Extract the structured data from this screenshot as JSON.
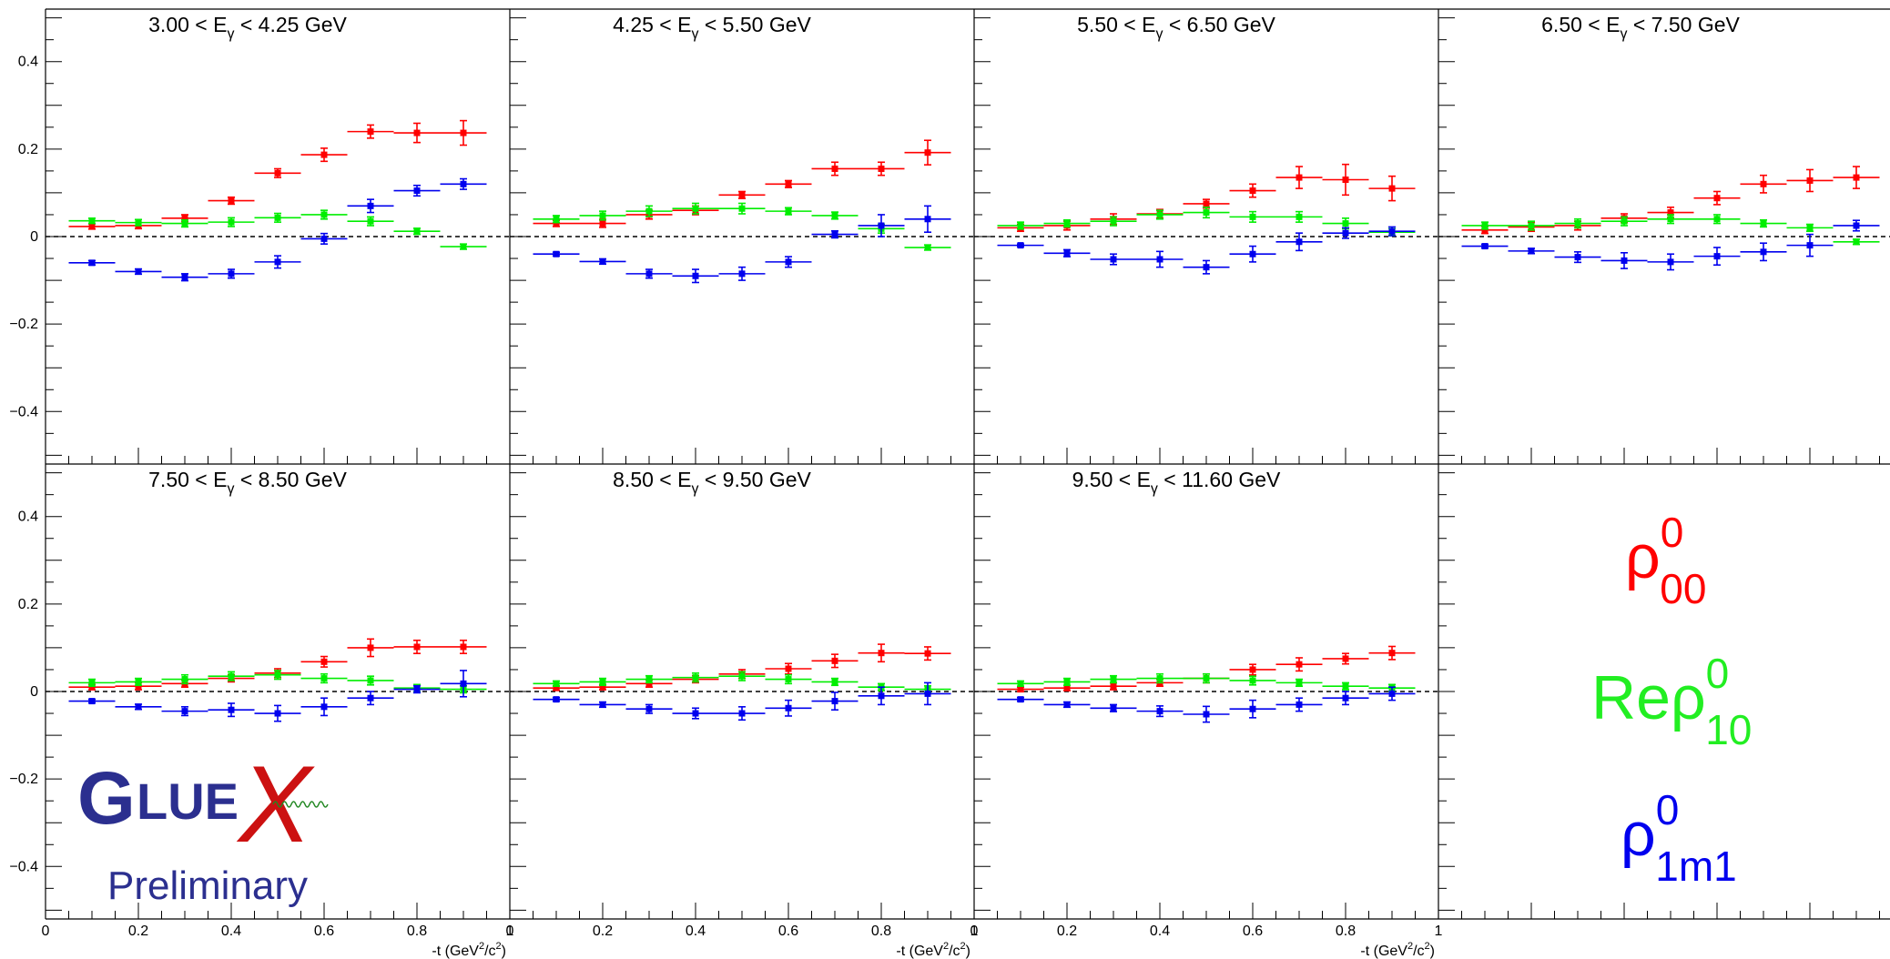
{
  "chart_data": [
    {
      "type": "scatter",
      "title": "3.00 < E_γ < 4.25 GeV",
      "title_parts": {
        "pre": "3.00 < E",
        "sub": "γ",
        "post": " < 4.25 GeV"
      },
      "xlim": [
        0,
        1
      ],
      "ylim": [
        -0.52,
        0.52
      ],
      "x": [
        0.1,
        0.2,
        0.3,
        0.4,
        0.5,
        0.6,
        0.7,
        0.8,
        0.9
      ],
      "series": [
        {
          "name": "ρ00",
          "color": "#ff0000",
          "values": [
            0.023,
            0.025,
            0.042,
            0.082,
            0.145,
            0.187,
            0.24,
            0.237,
            0.237
          ],
          "errors": [
            0.006,
            0.007,
            0.008,
            0.008,
            0.01,
            0.015,
            0.015,
            0.022,
            0.028
          ]
        },
        {
          "name": "Reρ10",
          "color": "#00ee00",
          "values": [
            0.036,
            0.032,
            0.03,
            0.033,
            0.043,
            0.05,
            0.035,
            0.012,
            -0.023
          ],
          "errors": [
            0.006,
            0.007,
            0.008,
            0.01,
            0.01,
            0.01,
            0.01,
            0.007,
            0.006
          ]
        },
        {
          "name": "ρ1m1",
          "color": "#0000ee",
          "values": [
            -0.06,
            -0.08,
            -0.093,
            -0.085,
            -0.058,
            -0.005,
            0.07,
            0.105,
            0.12
          ],
          "errors": [
            0.005,
            0.006,
            0.008,
            0.01,
            0.014,
            0.012,
            0.015,
            0.012,
            0.012
          ]
        }
      ]
    },
    {
      "type": "scatter",
      "title": "4.25 < E_γ < 5.50 GeV",
      "title_parts": {
        "pre": "4.25 < E",
        "sub": "γ",
        "post": " < 5.50 GeV"
      },
      "xlim": [
        0,
        1
      ],
      "ylim": [
        -0.52,
        0.52
      ],
      "x": [
        0.1,
        0.2,
        0.3,
        0.4,
        0.5,
        0.6,
        0.7,
        0.8,
        0.9
      ],
      "series": [
        {
          "name": "ρ00",
          "color": "#ff0000",
          "values": [
            0.03,
            0.03,
            0.05,
            0.06,
            0.095,
            0.12,
            0.155,
            0.155,
            0.192
          ],
          "errors": [
            0.007,
            0.009,
            0.01,
            0.01,
            0.008,
            0.008,
            0.015,
            0.015,
            0.028
          ]
        },
        {
          "name": "Reρ10",
          "color": "#00ee00",
          "values": [
            0.04,
            0.048,
            0.058,
            0.064,
            0.064,
            0.058,
            0.048,
            0.018,
            -0.025
          ],
          "errors": [
            0.008,
            0.01,
            0.012,
            0.012,
            0.012,
            0.008,
            0.008,
            0.01,
            0.006
          ]
        },
        {
          "name": "ρ1m1",
          "color": "#0000ee",
          "values": [
            -0.04,
            -0.057,
            -0.085,
            -0.09,
            -0.085,
            -0.058,
            0.005,
            0.025,
            0.04
          ],
          "errors": [
            0.004,
            0.006,
            0.01,
            0.015,
            0.015,
            0.012,
            0.008,
            0.025,
            0.03
          ]
        }
      ]
    },
    {
      "type": "scatter",
      "title": "5.50 < E_γ < 6.50 GeV",
      "title_parts": {
        "pre": "5.50 < E",
        "sub": "γ",
        "post": " < 6.50 GeV"
      },
      "xlim": [
        0,
        1
      ],
      "ylim": [
        -0.52,
        0.52
      ],
      "x": [
        0.1,
        0.2,
        0.3,
        0.4,
        0.5,
        0.6,
        0.7,
        0.8,
        0.9
      ],
      "series": [
        {
          "name": "ρ00",
          "color": "#ff0000",
          "values": [
            0.02,
            0.025,
            0.04,
            0.052,
            0.075,
            0.105,
            0.135,
            0.13,
            0.11
          ],
          "errors": [
            0.008,
            0.01,
            0.012,
            0.01,
            0.01,
            0.015,
            0.025,
            0.035,
            0.028
          ]
        },
        {
          "name": "Reρ10",
          "color": "#00ee00",
          "values": [
            0.025,
            0.03,
            0.035,
            0.05,
            0.055,
            0.045,
            0.045,
            0.03,
            0.01
          ],
          "errors": [
            0.008,
            0.008,
            0.01,
            0.01,
            0.012,
            0.012,
            0.012,
            0.012,
            0.008
          ]
        },
        {
          "name": "ρ1m1",
          "color": "#0000ee",
          "values": [
            -0.02,
            -0.038,
            -0.052,
            -0.052,
            -0.07,
            -0.04,
            -0.012,
            0.008,
            0.012
          ],
          "errors": [
            0.003,
            0.008,
            0.012,
            0.018,
            0.015,
            0.018,
            0.02,
            0.012,
            0.01
          ]
        }
      ]
    },
    {
      "type": "scatter",
      "title": "6.50 < E_γ < 7.50 GeV",
      "title_parts": {
        "pre": "6.50 < E",
        "sub": "γ",
        "post": " < 7.50 GeV"
      },
      "xlim": [
        0,
        1
      ],
      "ylim": [
        -0.52,
        0.52
      ],
      "x": [
        0.1,
        0.2,
        0.3,
        0.4,
        0.5,
        0.6,
        0.7,
        0.8,
        0.9
      ],
      "series": [
        {
          "name": "ρ00",
          "color": "#ff0000",
          "values": [
            0.015,
            0.022,
            0.025,
            0.042,
            0.055,
            0.088,
            0.12,
            0.128,
            0.135
          ],
          "errors": [
            0.008,
            0.01,
            0.01,
            0.01,
            0.012,
            0.015,
            0.02,
            0.025,
            0.025
          ]
        },
        {
          "name": "Reρ10",
          "color": "#00ee00",
          "values": [
            0.025,
            0.025,
            0.03,
            0.035,
            0.04,
            0.04,
            0.03,
            0.02,
            -0.012
          ],
          "errors": [
            0.008,
            0.01,
            0.01,
            0.01,
            0.01,
            0.01,
            0.008,
            0.008,
            0.006
          ]
        },
        {
          "name": "ρ1m1",
          "color": "#0000ee",
          "values": [
            -0.022,
            -0.033,
            -0.047,
            -0.055,
            -0.058,
            -0.045,
            -0.035,
            -0.02,
            0.025
          ],
          "errors": [
            0.004,
            0.006,
            0.012,
            0.018,
            0.018,
            0.02,
            0.02,
            0.025,
            0.012
          ]
        }
      ]
    },
    {
      "type": "scatter",
      "title": "7.50 < E_γ < 8.50 GeV",
      "title_parts": {
        "pre": "7.50 < E",
        "sub": "γ",
        "post": " < 8.50 GeV"
      },
      "xlim": [
        0,
        1
      ],
      "ylim": [
        -0.52,
        0.52
      ],
      "x": [
        0.1,
        0.2,
        0.3,
        0.4,
        0.5,
        0.6,
        0.7,
        0.8,
        0.9
      ],
      "series": [
        {
          "name": "ρ00",
          "color": "#ff0000",
          "values": [
            0.01,
            0.012,
            0.018,
            0.03,
            0.042,
            0.068,
            0.1,
            0.102,
            0.102
          ],
          "errors": [
            0.006,
            0.008,
            0.008,
            0.008,
            0.01,
            0.012,
            0.02,
            0.015,
            0.015
          ]
        },
        {
          "name": "Reρ10",
          "color": "#00ee00",
          "values": [
            0.02,
            0.022,
            0.028,
            0.035,
            0.038,
            0.03,
            0.025,
            0.008,
            0.005
          ],
          "errors": [
            0.008,
            0.008,
            0.01,
            0.01,
            0.01,
            0.01,
            0.01,
            0.008,
            0.008
          ]
        },
        {
          "name": "ρ1m1",
          "color": "#0000ee",
          "values": [
            -0.022,
            -0.035,
            -0.045,
            -0.042,
            -0.05,
            -0.035,
            -0.015,
            0.005,
            0.018
          ],
          "errors": [
            0.004,
            0.006,
            0.01,
            0.015,
            0.018,
            0.02,
            0.015,
            0.008,
            0.03
          ]
        }
      ]
    },
    {
      "type": "scatter",
      "title": "8.50 < E_γ < 9.50 GeV",
      "title_parts": {
        "pre": "8.50 < E",
        "sub": "γ",
        "post": " < 9.50 GeV"
      },
      "xlim": [
        0,
        1
      ],
      "ylim": [
        -0.52,
        0.52
      ],
      "x": [
        0.1,
        0.2,
        0.3,
        0.4,
        0.5,
        0.6,
        0.7,
        0.8,
        0.9
      ],
      "series": [
        {
          "name": "ρ00",
          "color": "#ff0000",
          "values": [
            0.008,
            0.01,
            0.018,
            0.028,
            0.04,
            0.052,
            0.07,
            0.088,
            0.087
          ],
          "errors": [
            0.005,
            0.006,
            0.008,
            0.008,
            0.01,
            0.012,
            0.015,
            0.02,
            0.015
          ]
        },
        {
          "name": "Reρ10",
          "color": "#00ee00",
          "values": [
            0.018,
            0.022,
            0.028,
            0.032,
            0.035,
            0.028,
            0.022,
            0.01,
            0.005
          ],
          "errors": [
            0.006,
            0.008,
            0.008,
            0.01,
            0.01,
            0.01,
            0.008,
            0.008,
            0.008
          ]
        },
        {
          "name": "ρ1m1",
          "color": "#0000ee",
          "values": [
            -0.018,
            -0.03,
            -0.04,
            -0.05,
            -0.05,
            -0.038,
            -0.022,
            -0.01,
            -0.005
          ],
          "errors": [
            0.004,
            0.006,
            0.01,
            0.012,
            0.015,
            0.018,
            0.02,
            0.02,
            0.025
          ]
        }
      ]
    },
    {
      "type": "scatter",
      "title": "9.50 < E_γ < 11.60 GeV",
      "title_parts": {
        "pre": "9.50 < E",
        "sub": "γ",
        "post": " < 11.60 GeV"
      },
      "xlim": [
        0,
        1
      ],
      "ylim": [
        -0.52,
        0.52
      ],
      "x": [
        0.1,
        0.2,
        0.3,
        0.4,
        0.5,
        0.6,
        0.7,
        0.8,
        0.9
      ],
      "series": [
        {
          "name": "ρ00",
          "color": "#ff0000",
          "values": [
            0.005,
            0.008,
            0.012,
            0.02,
            0.03,
            0.05,
            0.062,
            0.075,
            0.088
          ],
          "errors": [
            0.005,
            0.006,
            0.008,
            0.008,
            0.01,
            0.012,
            0.015,
            0.012,
            0.015
          ]
        },
        {
          "name": "Reρ10",
          "color": "#00ee00",
          "values": [
            0.018,
            0.022,
            0.028,
            0.03,
            0.03,
            0.025,
            0.02,
            0.012,
            0.008
          ],
          "errors": [
            0.006,
            0.008,
            0.008,
            0.01,
            0.01,
            0.01,
            0.008,
            0.008,
            0.008
          ]
        },
        {
          "name": "ρ1m1",
          "color": "#0000ee",
          "values": [
            -0.018,
            -0.03,
            -0.038,
            -0.045,
            -0.052,
            -0.04,
            -0.03,
            -0.015,
            -0.005
          ],
          "errors": [
            0.004,
            0.006,
            0.008,
            0.012,
            0.018,
            0.02,
            0.015,
            0.015,
            0.015
          ]
        }
      ]
    }
  ],
  "axes": {
    "xlabel": "-t (GeV²/c²)",
    "xlabel_parts": {
      "pre": "-t (GeV",
      "sup1": "2",
      "mid": "/c",
      "sup2": "2",
      "post": ")"
    },
    "xticks": [
      0,
      0.2,
      0.4,
      0.6,
      0.8,
      1
    ],
    "xtick_labels": [
      "0",
      "0.2",
      "0.4",
      "0.6",
      "0.8",
      "1"
    ],
    "yticks": [
      -0.4,
      -0.2,
      0,
      0.2,
      0.4
    ],
    "ytick_labels": [
      "−0.4",
      "−0.2",
      "0",
      "0.2",
      "0.4"
    ],
    "zero_line": "dashed"
  },
  "legend": {
    "placement": "bottom-right panel",
    "entries": [
      {
        "base": "ρ",
        "sup": "0",
        "sub": "00",
        "prefix": "",
        "color": "#ff0000"
      },
      {
        "base": "ρ",
        "sup": "0",
        "sub": "10",
        "prefix": "Re",
        "color": "#22ee22"
      },
      {
        "base": "ρ",
        "sup": "0",
        "sub": "1m1",
        "prefix": "",
        "color": "#0000ee"
      }
    ]
  },
  "logo": {
    "g": "G",
    "lue": "LUE",
    "x": "X",
    "subtitle": "Preliminary",
    "colors": {
      "main": "#2b2f8f",
      "accent": "#cc1111",
      "wave": "#228822"
    }
  }
}
